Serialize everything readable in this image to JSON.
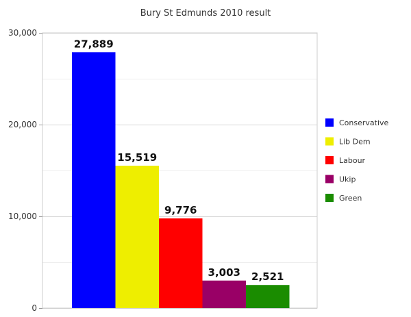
{
  "chart_data": {
    "type": "bar",
    "title": "Bury St Edmunds 2010 result",
    "categories": [
      "Conservative",
      "Lib Dem",
      "Labour",
      "Ukip",
      "Green"
    ],
    "values": [
      27889,
      15519,
      9776,
      3003,
      2521
    ],
    "data_labels": [
      "27,889",
      "15,519",
      "9,776",
      "3,003",
      "2,521"
    ],
    "colors": [
      "#0000ff",
      "#eeee00",
      "#ff0000",
      "#990066",
      "#1a8c00"
    ],
    "ylim": [
      0,
      30000
    ],
    "yticks": [
      {
        "value": 0,
        "label": "0"
      },
      {
        "value": 10000,
        "label": "10,000"
      },
      {
        "value": 20000,
        "label": "20,000"
      },
      {
        "value": 30000,
        "label": "30,000"
      }
    ],
    "grid": true,
    "legend_position": "right",
    "xlabel": "",
    "ylabel": ""
  }
}
